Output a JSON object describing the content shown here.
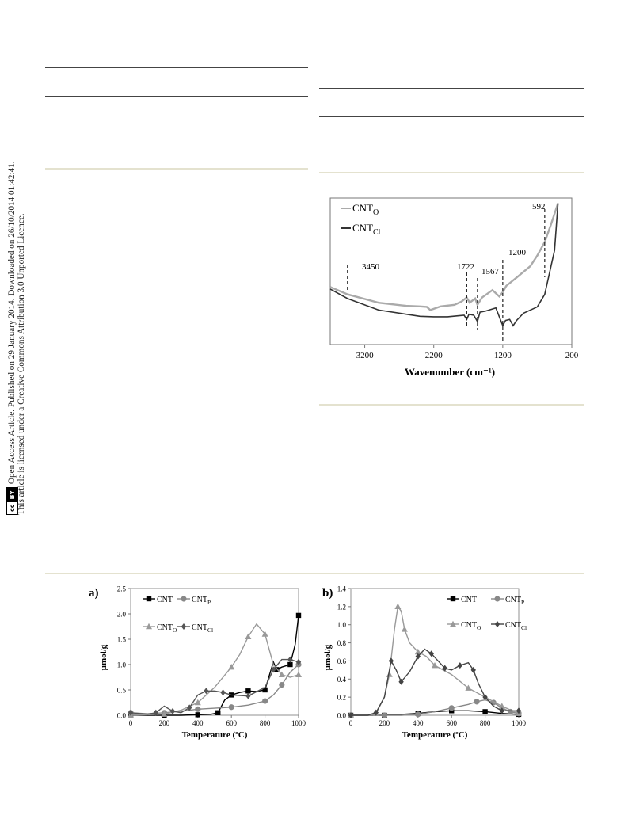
{
  "sidebar": {
    "line1": "Open Access Article. Published on 29 January 2014. Downloaded on 26/10/2014 01:42:41.",
    "line2": "This article is licensed under a Creative Commons Attribution 3.0 Unported Licence.",
    "cc_badge": "cc",
    "by_badge": "BY"
  },
  "ftir": {
    "xlabel": "Wavenumber (cm⁻¹)",
    "xticks": [
      "3200",
      "2200",
      "1200",
      "200"
    ],
    "legend": [
      "CNT",
      "O",
      "CNT",
      "Cl"
    ],
    "peaks": [
      "3450",
      "1722",
      "1567",
      "1200",
      "592"
    ]
  },
  "tpd_a": {
    "panel_label": "a)",
    "ylabel": "µmol/g",
    "xlabel": "Temperature (ºC)",
    "yticks": [
      "0.0",
      "0.5",
      "1.0",
      "1.5",
      "2.0",
      "2.5"
    ],
    "xticks": [
      "0",
      "200",
      "400",
      "600",
      "800",
      "1000"
    ],
    "legend": [
      "CNT",
      "CNT",
      "P",
      "CNT",
      "O",
      "CNT",
      "Cl"
    ]
  },
  "tpd_b": {
    "panel_label": "b)",
    "ylabel": "µmol/g",
    "xlabel": "Temperature (ºC)",
    "yticks": [
      "0.0",
      "0.2",
      "0.4",
      "0.6",
      "0.8",
      "1.0",
      "1.2",
      "1.4"
    ],
    "xticks": [
      "0",
      "200",
      "400",
      "600",
      "800",
      "1000"
    ],
    "legend": [
      "CNT",
      "CNT",
      "P",
      "CNT",
      "O",
      "CNT",
      "Cl"
    ]
  },
  "chart_data": [
    {
      "type": "line",
      "xlabel": "Wavenumber (cm⁻¹)",
      "xlim": [
        3700,
        200
      ],
      "x_reversed": true,
      "y_shown": false,
      "series": [
        {
          "name": "CNTO",
          "color": "#aaaaaa",
          "x": [
            3700,
            3450,
            3000,
            2600,
            2400,
            2300,
            2250,
            2100,
            1900,
            1800,
            1722,
            1680,
            1600,
            1567,
            1500,
            1350,
            1250,
            1200,
            1150,
            1000,
            800,
            700,
            592,
            500,
            400
          ],
          "y": [
            0.55,
            0.48,
            0.4,
            0.37,
            0.365,
            0.36,
            0.33,
            0.365,
            0.38,
            0.41,
            0.45,
            0.4,
            0.44,
            0.38,
            0.45,
            0.52,
            0.46,
            0.5,
            0.56,
            0.64,
            0.75,
            0.85,
            0.98,
            1.15,
            1.35
          ]
        },
        {
          "name": "CNTCl",
          "color": "#333333",
          "x": [
            3700,
            3450,
            3000,
            2600,
            2400,
            2200,
            2000,
            1850,
            1760,
            1722,
            1690,
            1620,
            1567,
            1530,
            1450,
            1300,
            1200,
            1160,
            1100,
            1050,
            1000,
            900,
            700,
            592,
            450,
            400
          ],
          "y": [
            0.53,
            0.44,
            0.33,
            0.29,
            0.27,
            0.265,
            0.265,
            0.275,
            0.28,
            0.24,
            0.29,
            0.28,
            0.22,
            0.31,
            0.32,
            0.35,
            0.18,
            0.23,
            0.24,
            0.18,
            0.23,
            0.3,
            0.36,
            0.48,
            0.9,
            1.35
          ]
        }
      ]
    },
    {
      "type": "line",
      "xlabel": "Temperature (ºC)",
      "ylabel": "µmol/g",
      "xlim": [
        0,
        1000
      ],
      "ylim": [
        0,
        2.5
      ],
      "series": [
        {
          "name": "CNT",
          "marker": "square",
          "color": "#000000",
          "x": [
            0,
            100,
            200,
            300,
            400,
            480,
            520,
            560,
            600,
            650,
            700,
            750,
            800,
            850,
            870,
            900,
            950,
            980,
            1000
          ],
          "y": [
            0,
            0,
            0,
            0,
            0.01,
            0.02,
            0.05,
            0.3,
            0.4,
            0.45,
            0.48,
            0.47,
            0.5,
            1.05,
            0.9,
            0.95,
            1.0,
            1.4,
            1.97
          ]
        },
        {
          "name": "CNTP",
          "marker": "circle",
          "color": "#888888",
          "x": [
            0,
            100,
            200,
            300,
            400,
            500,
            600,
            700,
            800,
            850,
            900,
            950,
            1000
          ],
          "y": [
            0.05,
            0.03,
            0.05,
            0.08,
            0.12,
            0.14,
            0.16,
            0.2,
            0.28,
            0.4,
            0.6,
            0.85,
            1.0
          ]
        },
        {
          "name": "CNTO",
          "marker": "triangle",
          "color": "#999999",
          "x": [
            0,
            100,
            200,
            300,
            400,
            500,
            600,
            650,
            700,
            750,
            800,
            850,
            900,
            950,
            1000
          ],
          "y": [
            0,
            0.01,
            0.02,
            0.1,
            0.25,
            0.55,
            0.95,
            1.2,
            1.55,
            1.8,
            1.6,
            1.0,
            0.8,
            0.75,
            0.8
          ]
        },
        {
          "name": "CNTCl",
          "marker": "diamond",
          "color": "#555555",
          "x": [
            0,
            100,
            150,
            200,
            250,
            300,
            350,
            400,
            450,
            500,
            550,
            600,
            700,
            800,
            850,
            900,
            950,
            1000
          ],
          "y": [
            0.05,
            0.02,
            0.05,
            0.18,
            0.08,
            0.05,
            0.15,
            0.4,
            0.48,
            0.48,
            0.45,
            0.4,
            0.38,
            0.55,
            0.9,
            1.1,
            1.1,
            1.05
          ]
        }
      ]
    },
    {
      "type": "line",
      "xlabel": "Temperature (ºC)",
      "ylabel": "µmol/g",
      "xlim": [
        0,
        1000
      ],
      "ylim": [
        0,
        1.4
      ],
      "series": [
        {
          "name": "CNT",
          "marker": "square",
          "color": "#000000",
          "x": [
            0,
            100,
            200,
            300,
            400,
            500,
            600,
            700,
            800,
            900,
            1000
          ],
          "y": [
            0,
            0,
            0,
            0.01,
            0.02,
            0.04,
            0.05,
            0.05,
            0.04,
            0.02,
            0.01
          ]
        },
        {
          "name": "CNTP",
          "marker": "circle",
          "color": "#888888",
          "x": [
            0,
            100,
            200,
            300,
            400,
            500,
            600,
            700,
            750,
            800,
            850,
            900,
            950,
            1000
          ],
          "y": [
            0,
            0,
            0,
            0,
            0.01,
            0.04,
            0.08,
            0.12,
            0.15,
            0.17,
            0.14,
            0.08,
            0.04,
            0.02
          ]
        },
        {
          "name": "CNTO",
          "marker": "triangle",
          "color": "#999999",
          "x": [
            0,
            100,
            150,
            200,
            230,
            260,
            280,
            300,
            320,
            350,
            400,
            450,
            500,
            600,
            700,
            800,
            900,
            1000
          ],
          "y": [
            0,
            0,
            0.02,
            0.2,
            0.45,
            0.95,
            1.2,
            1.15,
            0.95,
            0.8,
            0.7,
            0.65,
            0.55,
            0.45,
            0.3,
            0.2,
            0.1,
            0.02
          ]
        },
        {
          "name": "CNTCl",
          "marker": "diamond",
          "color": "#444444",
          "x": [
            0,
            100,
            150,
            200,
            240,
            270,
            300,
            350,
            400,
            440,
            480,
            520,
            560,
            600,
            650,
            700,
            730,
            760,
            800,
            850,
            900,
            1000
          ],
          "y": [
            0,
            0,
            0.03,
            0.2,
            0.6,
            0.5,
            0.37,
            0.48,
            0.65,
            0.73,
            0.68,
            0.6,
            0.52,
            0.5,
            0.55,
            0.58,
            0.5,
            0.35,
            0.2,
            0.1,
            0.05,
            0.05
          ]
        }
      ]
    }
  ]
}
